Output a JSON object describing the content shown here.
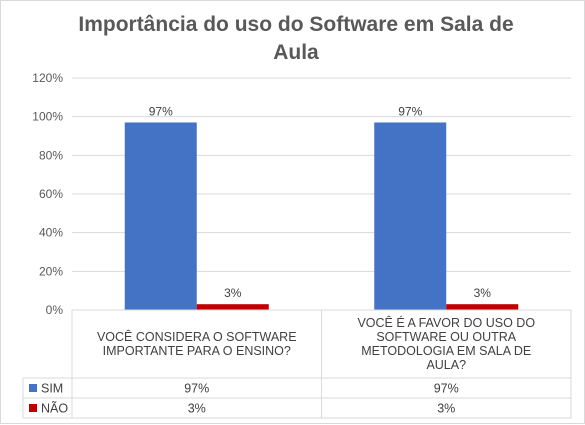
{
  "chart_data": {
    "type": "bar",
    "title": "Importância do uso do Software em Sala de\nAula",
    "categories": [
      "VOCÊ CONSIDERA O SOFTWARE\nIMPORTANTE PARA O ENSINO?",
      "VOCÊ É A FAVOR DO USO DO\nSOFTWARE OU OUTRA\nMETODOLOGIA EM SALA DE\nAULA?"
    ],
    "series": [
      {
        "name": "SIM",
        "values": [
          0.97,
          0.97
        ],
        "labels": [
          "97%",
          "97%"
        ],
        "color": "#4472c4"
      },
      {
        "name": "NÃO",
        "values": [
          0.03,
          0.03
        ],
        "labels": [
          "3%",
          "3%"
        ],
        "color": "#c00000"
      }
    ],
    "ylim": [
      0,
      1.2
    ],
    "yticks": [
      "0%",
      "20%",
      "40%",
      "60%",
      "80%",
      "100%",
      "120%"
    ],
    "grid": true,
    "data_table": true
  }
}
